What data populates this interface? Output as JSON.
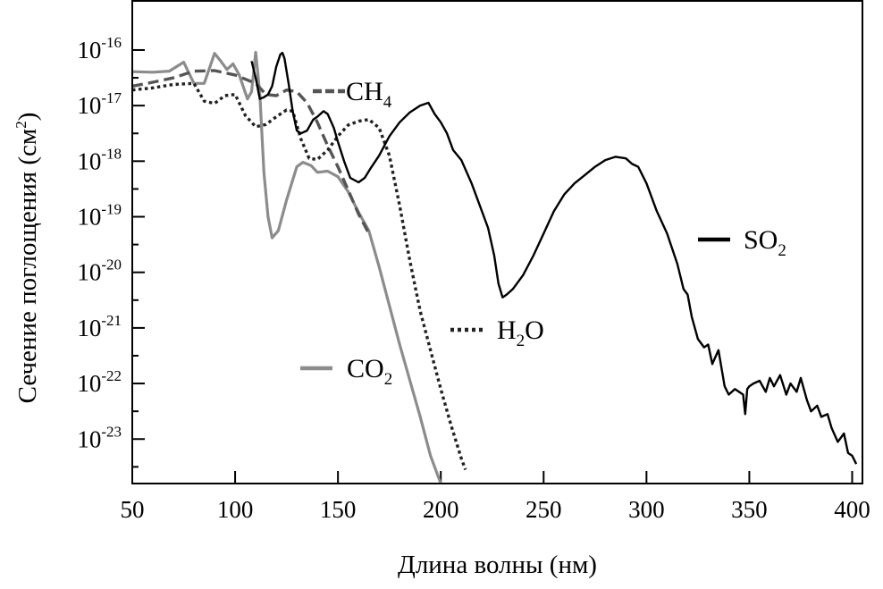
{
  "chart_data": {
    "type": "line",
    "title": "",
    "xlabel": "Длина волны (нм)",
    "ylabel": "Сечение поглощения (см²)",
    "ylabel_parts": {
      "main": "Сечение поглощения (см",
      "sup": "2",
      "end": ")"
    },
    "xlim": [
      50,
      405
    ],
    "ylim_exponent": [
      -23.8,
      -15.1
    ],
    "yscale": "log",
    "grid": false,
    "x_ticks": [
      "50",
      "100",
      "150",
      "200",
      "250",
      "300",
      "350",
      "400"
    ],
    "y_ticks": [
      {
        "base": "10",
        "exp": "-16"
      },
      {
        "base": "10",
        "exp": "-17"
      },
      {
        "base": "10",
        "exp": "-18"
      },
      {
        "base": "10",
        "exp": "-19"
      },
      {
        "base": "10",
        "exp": "-20"
      },
      {
        "base": "10",
        "exp": "-21"
      },
      {
        "base": "10",
        "exp": "-22"
      },
      {
        "base": "10",
        "exp": "-23"
      }
    ],
    "series": [
      {
        "name": "CO₂",
        "label_parts": {
          "main": "CO",
          "sub": "2"
        },
        "color": "#8c8c8c",
        "style": "solid",
        "x": [
          50,
          60,
          68,
          75,
          80,
          85,
          90,
          93,
          96,
          99,
          102,
          106,
          108,
          110,
          112,
          114,
          116,
          118,
          121,
          125,
          130,
          133,
          137,
          140,
          145,
          150,
          155,
          160,
          165,
          170,
          175,
          180,
          185,
          190,
          195,
          198,
          200
        ],
        "y": [
          -16.39,
          -16.4,
          -16.38,
          -16.22,
          -16.6,
          -16.6,
          -16.06,
          -16.2,
          -16.35,
          -16.25,
          -16.45,
          -16.88,
          -16.75,
          -16.04,
          -16.78,
          -18.2,
          -19.0,
          -19.38,
          -19.25,
          -18.7,
          -18.1,
          -18.02,
          -18.08,
          -18.2,
          -18.18,
          -18.28,
          -18.55,
          -18.92,
          -19.25,
          -19.9,
          -20.6,
          -21.3,
          -21.95,
          -22.6,
          -23.3,
          -23.6,
          -23.8
        ]
      },
      {
        "name": "CH₄",
        "label_parts": {
          "main": "CH",
          "sub": "4"
        },
        "color": "#555555",
        "style": "dashed",
        "x": [
          50,
          60,
          70,
          80,
          90,
          100,
          110,
          115,
          120,
          125,
          130,
          135,
          140,
          145,
          150,
          155,
          160,
          165
        ],
        "y": [
          -16.65,
          -16.58,
          -16.5,
          -16.38,
          -16.37,
          -16.45,
          -16.6,
          -16.8,
          -16.82,
          -16.72,
          -16.75,
          -16.95,
          -17.3,
          -17.72,
          -18.1,
          -18.52,
          -18.95,
          -19.3
        ]
      },
      {
        "name": "H₂O",
        "label_parts": {
          "main": "H",
          "sub": "2",
          "end": "O"
        },
        "color": "#222222",
        "style": "dotted",
        "x": [
          50,
          60,
          70,
          80,
          85,
          90,
          95,
          100,
          105,
          110,
          115,
          120,
          125,
          128,
          132,
          136,
          140,
          145,
          150,
          155,
          160,
          165,
          170,
          175,
          180,
          185,
          190,
          195,
          200,
          205,
          210,
          212
        ],
        "y": [
          -16.72,
          -16.68,
          -16.62,
          -16.6,
          -16.92,
          -16.96,
          -16.82,
          -16.8,
          -17.18,
          -17.38,
          -17.34,
          -17.2,
          -17.08,
          -17.1,
          -17.6,
          -17.95,
          -17.97,
          -17.8,
          -17.55,
          -17.35,
          -17.28,
          -17.25,
          -17.4,
          -17.9,
          -18.8,
          -19.8,
          -20.7,
          -21.4,
          -22.1,
          -22.75,
          -23.35,
          -23.55
        ]
      },
      {
        "name": "SO₂",
        "label_parts": {
          "main": "SO",
          "sub": "2"
        },
        "color": "#000000",
        "style": "solid",
        "x": [
          108,
          110,
          112,
          114,
          116,
          118,
          120,
          122,
          123,
          124,
          126,
          128,
          130,
          132,
          135,
          138,
          140,
          143,
          145,
          148,
          150,
          153,
          156,
          160,
          163,
          166,
          170,
          175,
          180,
          185,
          190,
          194,
          197,
          200,
          203,
          206,
          210,
          215,
          220,
          223,
          226,
          228,
          230,
          232,
          235,
          240,
          245,
          250,
          255,
          260,
          265,
          270,
          275,
          280,
          285,
          290,
          293,
          296,
          300,
          305,
          310,
          315,
          318,
          320,
          322,
          325,
          328,
          330,
          332,
          335,
          338,
          340,
          343,
          345,
          347,
          348,
          349,
          350,
          352,
          355,
          358,
          360,
          362,
          365,
          368,
          370,
          373,
          375,
          378,
          380,
          383,
          385,
          388,
          390,
          393,
          396,
          398,
          400,
          402
        ],
        "y": [
          -16.2,
          -16.5,
          -16.88,
          -16.85,
          -16.8,
          -16.65,
          -16.3,
          -16.08,
          -16.05,
          -16.15,
          -16.6,
          -17.1,
          -17.45,
          -17.5,
          -17.45,
          -17.25,
          -17.2,
          -17.1,
          -17.15,
          -17.4,
          -17.65,
          -18.0,
          -18.3,
          -18.38,
          -18.3,
          -18.12,
          -17.9,
          -17.55,
          -17.3,
          -17.12,
          -17.0,
          -16.95,
          -17.15,
          -17.3,
          -17.5,
          -17.8,
          -17.98,
          -18.4,
          -18.9,
          -19.2,
          -19.7,
          -20.2,
          -20.45,
          -20.4,
          -20.3,
          -20.05,
          -19.7,
          -19.3,
          -18.9,
          -18.6,
          -18.4,
          -18.25,
          -18.1,
          -17.98,
          -17.92,
          -17.95,
          -18.05,
          -18.1,
          -18.4,
          -18.9,
          -19.3,
          -19.85,
          -20.3,
          -20.4,
          -20.8,
          -21.2,
          -21.35,
          -21.3,
          -21.65,
          -21.4,
          -22.05,
          -22.2,
          -22.1,
          -22.15,
          -22.2,
          -22.55,
          -22.1,
          -22.05,
          -22.0,
          -21.95,
          -22.15,
          -21.9,
          -22.05,
          -21.85,
          -22.2,
          -22.0,
          -22.15,
          -21.9,
          -22.3,
          -22.5,
          -22.4,
          -22.6,
          -22.55,
          -22.8,
          -23.05,
          -22.9,
          -23.25,
          -23.3,
          -23.45
        ]
      }
    ]
  }
}
